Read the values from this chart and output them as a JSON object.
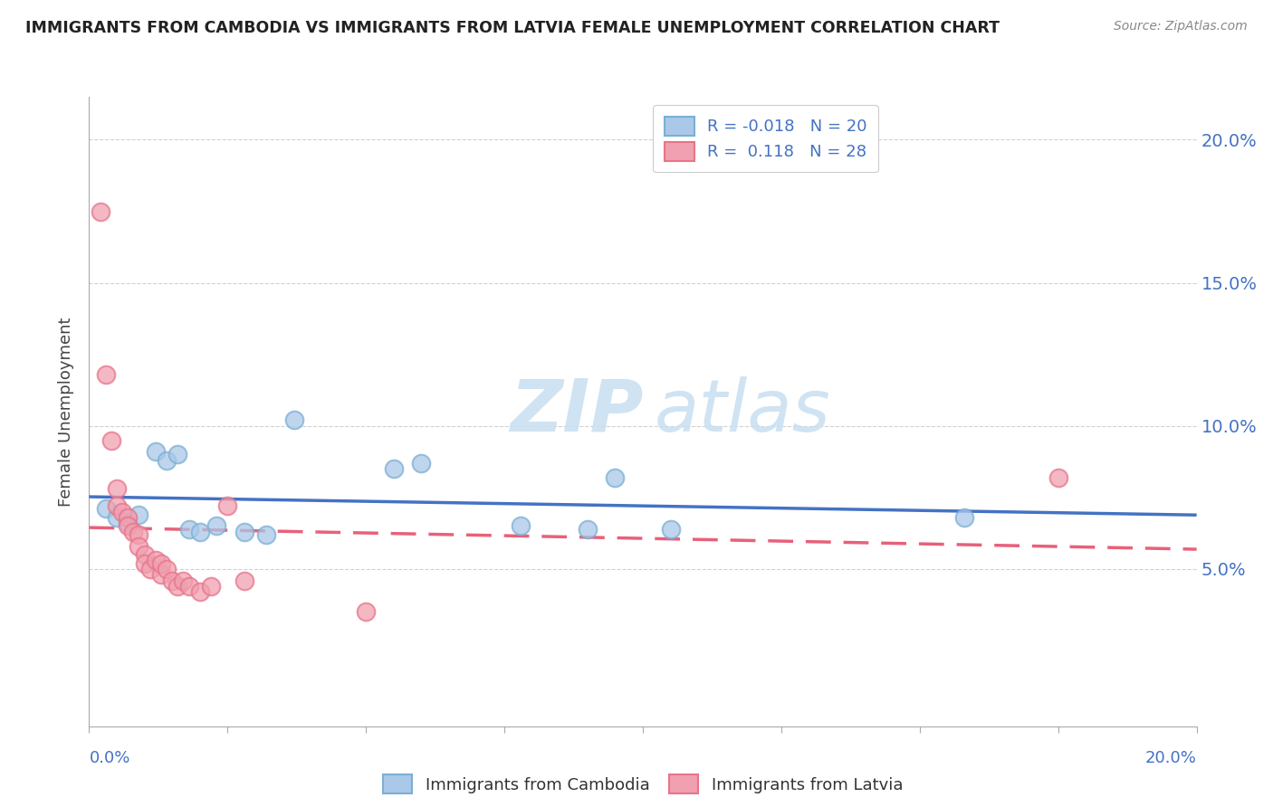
{
  "title": "IMMIGRANTS FROM CAMBODIA VS IMMIGRANTS FROM LATVIA FEMALE UNEMPLOYMENT CORRELATION CHART",
  "source": "Source: ZipAtlas.com",
  "ylabel": "Female Unemployment",
  "xlim": [
    0.0,
    0.2
  ],
  "ylim": [
    -0.005,
    0.215
  ],
  "ytick_vals": [
    0.05,
    0.1,
    0.15,
    0.2
  ],
  "ytick_labels": [
    "5.0%",
    "10.0%",
    "15.0%",
    "20.0%"
  ],
  "cambodia_color": "#7bafd4",
  "cambodia_fill": "#aac8e8",
  "latvia_color": "#e8748a",
  "latvia_fill": "#f0a0b0",
  "cambodia_points": [
    [
      0.003,
      0.071
    ],
    [
      0.005,
      0.068
    ],
    [
      0.007,
      0.066
    ],
    [
      0.009,
      0.069
    ],
    [
      0.012,
      0.091
    ],
    [
      0.014,
      0.088
    ],
    [
      0.016,
      0.09
    ],
    [
      0.018,
      0.064
    ],
    [
      0.02,
      0.063
    ],
    [
      0.023,
      0.065
    ],
    [
      0.028,
      0.063
    ],
    [
      0.032,
      0.062
    ],
    [
      0.037,
      0.102
    ],
    [
      0.055,
      0.085
    ],
    [
      0.06,
      0.087
    ],
    [
      0.078,
      0.065
    ],
    [
      0.09,
      0.064
    ],
    [
      0.095,
      0.082
    ],
    [
      0.105,
      0.064
    ],
    [
      0.158,
      0.068
    ]
  ],
  "latvia_points": [
    [
      0.002,
      0.175
    ],
    [
      0.003,
      0.118
    ],
    [
      0.004,
      0.095
    ],
    [
      0.005,
      0.078
    ],
    [
      0.005,
      0.072
    ],
    [
      0.006,
      0.07
    ],
    [
      0.007,
      0.068
    ],
    [
      0.007,
      0.065
    ],
    [
      0.008,
      0.063
    ],
    [
      0.009,
      0.062
    ],
    [
      0.009,
      0.058
    ],
    [
      0.01,
      0.055
    ],
    [
      0.01,
      0.052
    ],
    [
      0.011,
      0.05
    ],
    [
      0.012,
      0.053
    ],
    [
      0.013,
      0.048
    ],
    [
      0.013,
      0.052
    ],
    [
      0.014,
      0.05
    ],
    [
      0.015,
      0.046
    ],
    [
      0.016,
      0.044
    ],
    [
      0.017,
      0.046
    ],
    [
      0.018,
      0.044
    ],
    [
      0.02,
      0.042
    ],
    [
      0.022,
      0.044
    ],
    [
      0.025,
      0.072
    ],
    [
      0.028,
      0.046
    ],
    [
      0.05,
      0.035
    ],
    [
      0.175,
      0.082
    ]
  ],
  "background_color": "#ffffff",
  "grid_color": "#cccccc",
  "axis_label_color": "#4472c4",
  "title_color": "#222222",
  "watermark_color": "#c8dff0",
  "R_cambodia": "-0.018",
  "N_cambodia": "20",
  "R_latvia": "0.118",
  "N_latvia": "28"
}
